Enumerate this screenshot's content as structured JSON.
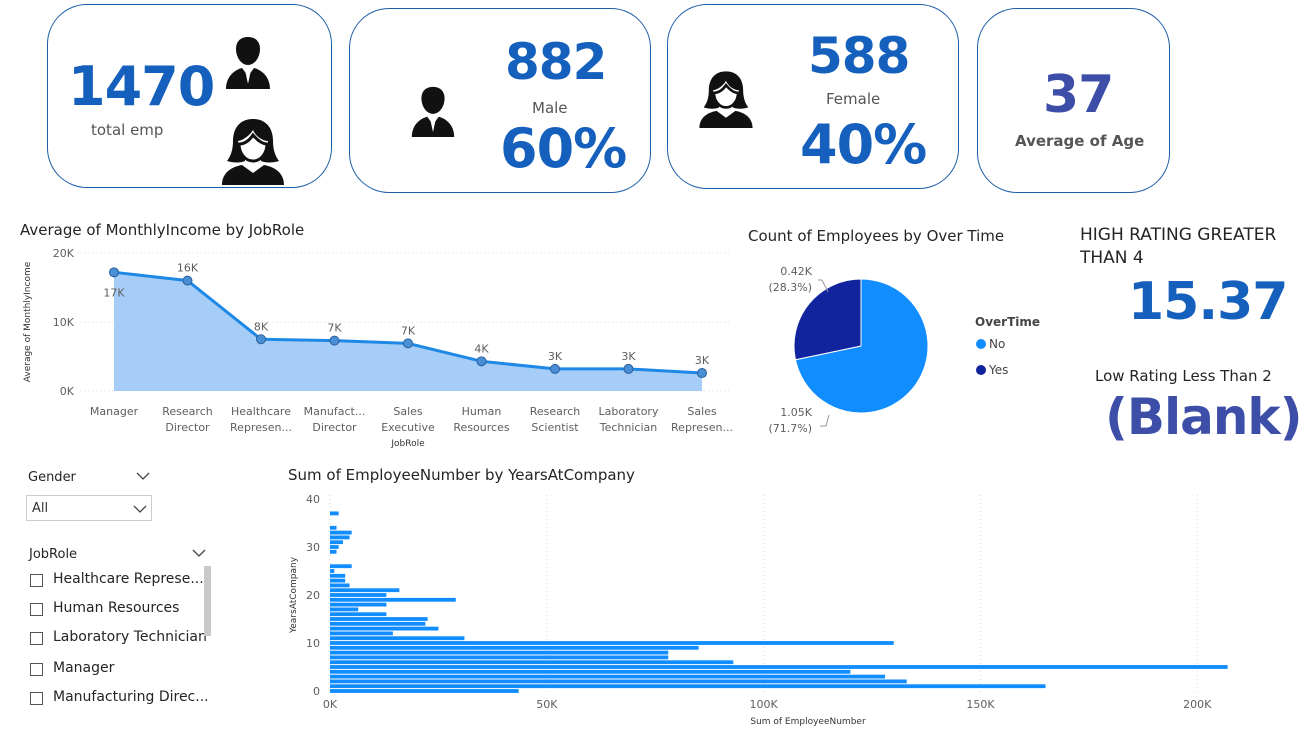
{
  "cards": {
    "total": {
      "value": "1470",
      "label": "total emp"
    },
    "male": {
      "value": "882",
      "label": "Male",
      "pct": "60%"
    },
    "female": {
      "value": "588",
      "label": "Female",
      "pct": "40%"
    },
    "age": {
      "value": "37",
      "label": "Average of Age"
    }
  },
  "rating": {
    "high_title_line1": "HIGH RATING GREATER",
    "high_title_line2": "THAN 4",
    "high_value": "15.37",
    "low_title": "Low Rating Less Than 2",
    "low_value": "(Blank)"
  },
  "colors": {
    "accent": "#1560bd",
    "area_fill": "#a5cdf7",
    "line": "#1e88e5",
    "pie_no": "#118dff",
    "pie_yes": "#12239e",
    "age_value": "#3d4ea8"
  },
  "slicers": {
    "gender": {
      "title": "Gender",
      "selected": "All"
    },
    "jobrole": {
      "title": "JobRole",
      "items": [
        "Healthcare Represe...",
        "Human Resources",
        "Laboratory Technician",
        "Manager",
        "Manufacturing Direc..."
      ]
    }
  },
  "chart_data": [
    {
      "type": "area",
      "title": "Average of MonthlyIncome by JobRole",
      "xlabel": "JobRole",
      "ylabel": "Average of MonthlyIncome",
      "ylim": [
        0,
        20000
      ],
      "yticks": [
        "0K",
        "10K",
        "20K"
      ],
      "categories": [
        [
          "Manager"
        ],
        [
          "Research",
          "Director"
        ],
        [
          "Healthcare",
          "Represen..."
        ],
        [
          "Manufact...",
          "Director"
        ],
        [
          "Sales",
          "Executive"
        ],
        [
          "Human",
          "Resources"
        ],
        [
          "Research",
          "Scientist"
        ],
        [
          "Laboratory",
          "Technician"
        ],
        [
          "Sales",
          "Represen..."
        ]
      ],
      "values": [
        17200,
        16000,
        7500,
        7300,
        6900,
        4300,
        3200,
        3200,
        2600
      ],
      "data_labels": [
        "17K",
        "16K",
        "8K",
        "7K",
        "7K",
        "4K",
        "3K",
        "3K",
        "3K"
      ]
    },
    {
      "type": "pie",
      "title": "Count of Employees by Over Time",
      "legend_title": "OverTime",
      "legend_position": "right",
      "slices": [
        {
          "name": "No",
          "value": 1054,
          "label": "1.05K",
          "pct": "(71.7%)"
        },
        {
          "name": "Yes",
          "value": 416,
          "label": "0.42K",
          "pct": "(28.3%)"
        }
      ]
    },
    {
      "type": "bar",
      "orientation": "horizontal",
      "title": "Sum of EmployeeNumber by YearsAtCompany",
      "xlabel": "Sum of EmployeeNumber",
      "ylabel": "YearsAtCompany",
      "xlim": [
        0,
        220000
      ],
      "xticks": [
        0,
        50000,
        100000,
        150000,
        200000
      ],
      "xtick_labels": [
        "0K",
        "50K",
        "100K",
        "150K",
        "200K"
      ],
      "ylim": [
        0,
        40
      ],
      "yticks": [
        0,
        10,
        20,
        30,
        40
      ],
      "grid": true,
      "years": [
        0,
        1,
        2,
        3,
        4,
        5,
        6,
        7,
        8,
        9,
        10,
        11,
        12,
        13,
        14,
        15,
        16,
        17,
        18,
        19,
        20,
        21,
        22,
        23,
        24,
        25,
        26,
        27,
        28,
        29,
        30,
        31,
        32,
        33,
        34,
        35,
        36,
        37,
        38,
        39,
        40
      ],
      "values": [
        43500,
        165000,
        133000,
        128000,
        120000,
        207000,
        93000,
        78000,
        78000,
        85000,
        130000,
        31000,
        14500,
        25000,
        22000,
        22500,
        13000,
        6500,
        13000,
        29000,
        13000,
        16000,
        4500,
        3500,
        3500,
        1000,
        5000,
        0,
        0,
        1500,
        2000,
        3000,
        4500,
        5000,
        1500,
        0,
        0,
        2000,
        0,
        0,
        0
      ]
    }
  ]
}
